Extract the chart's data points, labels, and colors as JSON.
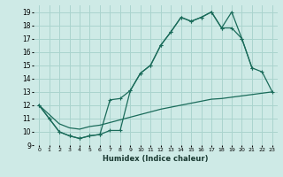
{
  "xlabel": "Humidex (Indice chaleur)",
  "bg_color": "#ceeae6",
  "grid_color": "#aad4ce",
  "line_color": "#1a6b5a",
  "xlim": [
    -0.5,
    23.5
  ],
  "ylim": [
    9,
    19.5
  ],
  "xticks": [
    0,
    1,
    2,
    3,
    4,
    5,
    6,
    7,
    8,
    9,
    10,
    11,
    12,
    13,
    14,
    15,
    16,
    17,
    18,
    19,
    20,
    21,
    22,
    23
  ],
  "yticks": [
    9,
    10,
    11,
    12,
    13,
    14,
    15,
    16,
    17,
    18,
    19
  ],
  "line1_x": [
    0,
    1,
    2,
    3,
    4,
    5,
    6,
    7,
    8,
    9,
    10,
    11,
    12,
    13,
    14,
    15,
    16,
    17,
    18,
    19,
    20,
    21
  ],
  "line1_y": [
    12,
    11,
    10,
    9.7,
    9.5,
    9.7,
    9.8,
    10.1,
    10.1,
    13.1,
    14.4,
    15.0,
    16.5,
    17.5,
    18.6,
    18.3,
    18.6,
    19.0,
    17.8,
    19.0,
    17.0,
    14.8
  ],
  "line2_x": [
    0,
    1,
    2,
    3,
    4,
    5,
    6,
    7,
    8,
    9,
    10,
    11,
    12,
    13,
    14,
    15,
    16,
    17,
    18,
    19,
    20,
    21,
    22,
    23
  ],
  "line2_y": [
    12,
    11,
    10,
    9.7,
    9.5,
    9.7,
    9.8,
    12.4,
    12.5,
    13.1,
    14.4,
    15.0,
    16.5,
    17.5,
    18.6,
    18.3,
    18.6,
    19.0,
    17.8,
    17.8,
    17.0,
    14.8,
    14.5,
    13.0
  ],
  "line3_x": [
    0,
    1,
    2,
    3,
    4,
    5,
    6,
    7,
    8,
    9,
    10,
    11,
    12,
    13,
    14,
    15,
    16,
    17,
    18,
    19,
    20,
    21,
    22,
    23
  ],
  "line3_y": [
    12.0,
    11.3,
    10.6,
    10.3,
    10.2,
    10.4,
    10.5,
    10.7,
    10.9,
    11.1,
    11.3,
    11.5,
    11.7,
    11.85,
    12.0,
    12.15,
    12.3,
    12.45,
    12.5,
    12.6,
    12.7,
    12.8,
    12.9,
    13.0
  ]
}
